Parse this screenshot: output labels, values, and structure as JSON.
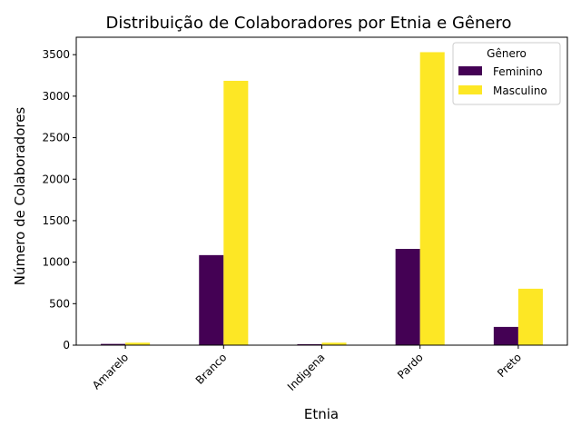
{
  "chart_data": {
    "type": "bar",
    "title": "Distribuição de Colaboradores por Etnia e Gênero",
    "xlabel": "Etnia",
    "ylabel": "Número de Colaboradores",
    "categories": [
      "Amarelo",
      "Branco",
      "Indigena",
      "Pardo",
      "Preto"
    ],
    "series": [
      {
        "name": "Feminino",
        "color": "#440154",
        "values": [
          15,
          1085,
          12,
          1160,
          220
        ]
      },
      {
        "name": "Masculino",
        "color": "#fde725",
        "values": [
          30,
          3185,
          30,
          3530,
          680
        ]
      }
    ],
    "ylim": [
      0,
      3710
    ],
    "yticks": [
      0,
      500,
      1000,
      1500,
      2000,
      2500,
      3000,
      3500
    ],
    "legend": {
      "title": "Gênero",
      "placement": "top-right"
    },
    "grid": false
  }
}
